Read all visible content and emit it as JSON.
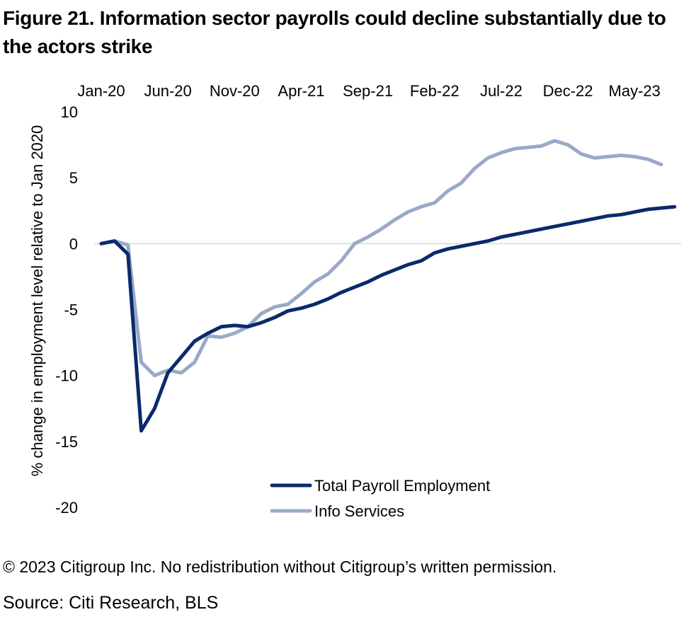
{
  "title": "Figure 21. Information sector payrolls could decline substantially due to the actors strike",
  "footer": {
    "copyright": "© 2023 Citigroup Inc. No redistribution without Citigroup’s written permission.",
    "source": "Source: Citi Research, BLS"
  },
  "colors": {
    "total": "#0b2a6b",
    "info": "#9aa9c8",
    "zero_line": "#d9d9d9"
  },
  "chart_data": {
    "type": "line",
    "title": "Figure 21. Information sector payrolls could decline substantially due to the actors strike",
    "xlabel": "",
    "ylabel": "% change in employment level relative to Jan 2020",
    "ylim": [
      -20,
      10
    ],
    "yticks": [
      10,
      5,
      0,
      -5,
      -10,
      -15,
      -20
    ],
    "x_start": "Jan-20",
    "x_tick_labels": [
      "Jan-20",
      "Jun-20",
      "Nov-20",
      "Apr-21",
      "Sep-21",
      "Feb-22",
      "Jul-22",
      "Dec-22",
      "May-23"
    ],
    "x_axis_position": "top",
    "grid": false,
    "legend_position": "bottom-center",
    "series": [
      {
        "name": "Total Payroll Employment",
        "values": [
          0,
          0.2,
          -0.8,
          -14.2,
          -12.5,
          -9.8,
          -8.6,
          -7.4,
          -6.8,
          -6.3,
          -6.2,
          -6.3,
          -6.0,
          -5.6,
          -5.1,
          -4.9,
          -4.6,
          -4.2,
          -3.7,
          -3.3,
          -2.9,
          -2.4,
          -2.0,
          -1.6,
          -1.3,
          -0.7,
          -0.4,
          -0.2,
          0.0,
          0.2,
          0.5,
          0.7,
          0.9,
          1.1,
          1.3,
          1.5,
          1.7,
          1.9,
          2.1,
          2.2,
          2.4,
          2.6,
          2.7,
          2.8
        ]
      },
      {
        "name": "Info Services",
        "values": [
          0,
          0.2,
          -0.1,
          -9.0,
          -10.0,
          -9.6,
          -9.8,
          -9.0,
          -7.0,
          -7.1,
          -6.8,
          -6.3,
          -5.3,
          -4.8,
          -4.6,
          -3.8,
          -2.9,
          -2.3,
          -1.3,
          0.0,
          0.5,
          1.1,
          1.8,
          2.4,
          2.8,
          3.1,
          4.0,
          4.6,
          5.7,
          6.5,
          6.9,
          7.2,
          7.3,
          7.4,
          7.8,
          7.5,
          6.8,
          6.5,
          6.6,
          6.7,
          6.6,
          6.4,
          6.0
        ]
      }
    ]
  }
}
